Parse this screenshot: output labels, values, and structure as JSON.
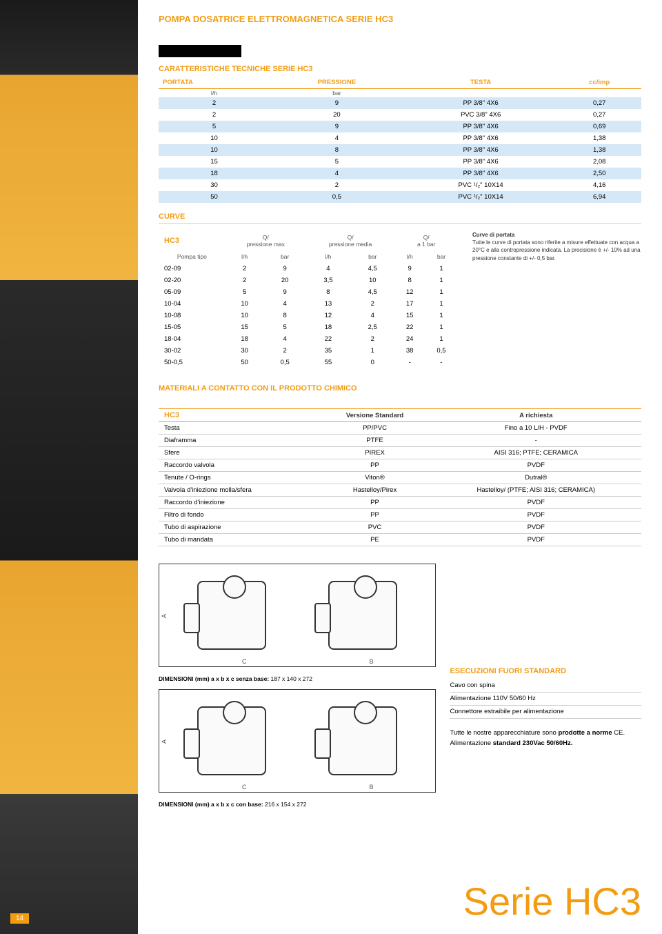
{
  "header_title": "POMPA DOSATRICE ELETTROMAGNETICA SERIE HC3",
  "spec": {
    "title": "CARATTERISTICHE TECNICHE SERIE HC3",
    "cols": [
      "PORTATA",
      "PRESSIONE",
      "TESTA",
      "cc/imp"
    ],
    "units": [
      "l/h",
      "bar",
      "",
      ""
    ],
    "rows": [
      [
        "2",
        "9",
        "PP 3/8\" 4X6",
        "0,27"
      ],
      [
        "2",
        "20",
        "PVC 3/8\" 4X6",
        "0,27"
      ],
      [
        "5",
        "9",
        "PP 3/8\" 4X6",
        "0,69"
      ],
      [
        "10",
        "4",
        "PP 3/8\" 4X6",
        "1,38"
      ],
      [
        "10",
        "8",
        "PP 3/8\" 4X6",
        "1,38"
      ],
      [
        "15",
        "5",
        "PP 3/8\" 4X6",
        "2,08"
      ],
      [
        "18",
        "4",
        "PP 3/8\" 4X6",
        "2,50"
      ],
      [
        "30",
        "2",
        "PVC ¹/₂\" 10X14",
        "4,16"
      ],
      [
        "50",
        "0,5",
        "PVC ¹/₂\" 10X14",
        "6,94"
      ]
    ]
  },
  "curve": {
    "label": "CURVE",
    "hc3": "HC3",
    "head_groups": [
      "Q/\npressione max",
      "Q/\npressione media",
      "Q/\na 1 bar"
    ],
    "sub": [
      "Pompa tipo",
      "l/h",
      "bar",
      "l/h",
      "bar",
      "l/h",
      "bar"
    ],
    "rows": [
      [
        "02-09",
        "2",
        "9",
        "4",
        "4,5",
        "9",
        "1"
      ],
      [
        "02-20",
        "2",
        "20",
        "3,5",
        "10",
        "8",
        "1"
      ],
      [
        "05-09",
        "5",
        "9",
        "8",
        "4,5",
        "12",
        "1"
      ],
      [
        "10-04",
        "10",
        "4",
        "13",
        "2",
        "17",
        "1"
      ],
      [
        "10-08",
        "10",
        "8",
        "12",
        "4",
        "15",
        "1"
      ],
      [
        "15-05",
        "15",
        "5",
        "18",
        "2,5",
        "22",
        "1"
      ],
      [
        "18-04",
        "18",
        "4",
        "22",
        "2",
        "24",
        "1"
      ],
      [
        "30-02",
        "30",
        "2",
        "35",
        "1",
        "38",
        "0,5"
      ],
      [
        "50-0,5",
        "50",
        "0,5",
        "55",
        "0",
        "-",
        "-"
      ]
    ],
    "note_title": "Curve di portata",
    "note_body": "Tutte le curve di portata sono riferite a misure effettuate con acqua a 20°C e alla contropressione indicata. La precisione è +/- 10% ad una pressione constante di +/- 0,5 bar."
  },
  "materials": {
    "title": "MATERIALI A CONTATTO CON IL PRODOTTO CHIMICO",
    "hc3": "HC3",
    "col_std": "Versione Standard",
    "col_req": "A richiesta",
    "rows": [
      [
        "Testa",
        "PP/PVC",
        "Fino a 10 L/H - PVDF"
      ],
      [
        "Diaframma",
        "PTFE",
        "-"
      ],
      [
        "Sfere",
        "PIREX",
        "AISI 316; PTFE; CERAMICA"
      ],
      [
        "Raccordo valvola",
        "PP",
        "PVDF"
      ],
      [
        "Tenute / O-rings",
        "Viton®",
        "Dutral®"
      ],
      [
        "Valvola d'iniezione molla/sfera",
        "Hastelloy/Pirex",
        "Hastelloy/ (PTFE; AISI 316; CERAMICA)"
      ],
      [
        "Raccordo d'iniezione",
        "PP",
        "PVDF"
      ],
      [
        "Filtro di fondo",
        "PP",
        "PVDF"
      ],
      [
        "Tubo di aspirazione",
        "PVC",
        "PVDF"
      ],
      [
        "Tubo di mandata",
        "PE",
        "PVDF"
      ]
    ]
  },
  "dimensions": {
    "label1_prefix": "DIMENSIONI (mm) a x b x c senza base: ",
    "label1_val": "187 x 140 x 272",
    "label2_prefix": "DIMENSIONI (mm) a x b x c con base: ",
    "label2_val": "216 x 154 x 272",
    "axis_a": "A",
    "axis_b": "B",
    "axis_c": "C"
  },
  "esecuzioni": {
    "title": "ESECUZIONI FUORI STANDARD",
    "items": [
      "Cavo con spina",
      "Alimentazione 110V 50/60 Hz",
      "Connettore estraibile per alimentazione"
    ],
    "note": "Tutte le nostre apparecchiature sono prodotte a norme CE. Alimentazione standard 230Vac 50/60Hz.",
    "note_bold1": "prodotte a norme",
    "note_bold2": "standard 230Vac 50/60Hz."
  },
  "serie_label": "Serie HC3",
  "page_num": "14"
}
